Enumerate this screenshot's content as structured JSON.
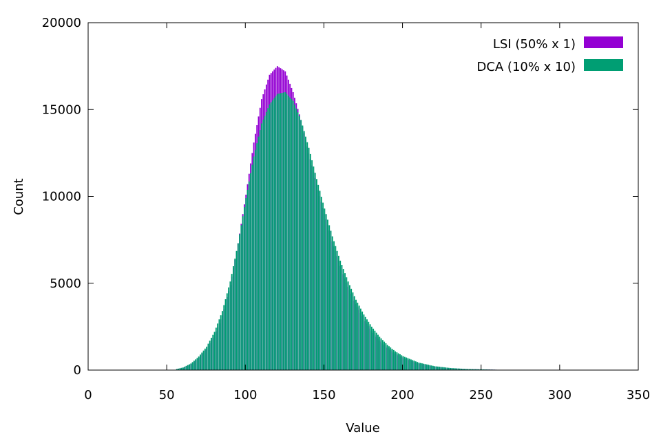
{
  "chart_data": {
    "type": "bar",
    "xlabel": "Value",
    "ylabel": "Count",
    "xlim": [
      0,
      350
    ],
    "ylim": [
      0,
      20000
    ],
    "xticks": [
      0,
      50,
      100,
      150,
      200,
      250,
      300,
      350
    ],
    "yticks": [
      0,
      5000,
      10000,
      15000,
      20000
    ],
    "grid": false,
    "legend_position": "top-right",
    "bin_width": 1,
    "series": [
      {
        "name": "LSI (50% x 1)",
        "color": "#9400d3",
        "points": [
          [
            55,
            40
          ],
          [
            60,
            140
          ],
          [
            65,
            350
          ],
          [
            70,
            720
          ],
          [
            75,
            1250
          ],
          [
            80,
            2000
          ],
          [
            85,
            3150
          ],
          [
            90,
            4900
          ],
          [
            95,
            7300
          ],
          [
            100,
            10100
          ],
          [
            105,
            13100
          ],
          [
            110,
            15600
          ],
          [
            115,
            17000
          ],
          [
            120,
            17500
          ],
          [
            125,
            17200
          ],
          [
            130,
            16000
          ],
          [
            135,
            14400
          ],
          [
            140,
            12500
          ],
          [
            145,
            10700
          ],
          [
            150,
            9000
          ],
          [
            155,
            7400
          ],
          [
            160,
            6000
          ],
          [
            165,
            4800
          ],
          [
            170,
            3800
          ],
          [
            175,
            2950
          ],
          [
            180,
            2250
          ],
          [
            185,
            1700
          ],
          [
            190,
            1280
          ],
          [
            195,
            950
          ],
          [
            200,
            700
          ],
          [
            210,
            380
          ],
          [
            220,
            200
          ],
          [
            230,
            110
          ],
          [
            240,
            60
          ],
          [
            260,
            20
          ],
          [
            300,
            5
          ],
          [
            348,
            0
          ]
        ]
      },
      {
        "name": "DCA (10% x 10)",
        "color": "#009e73",
        "points": [
          [
            55,
            40
          ],
          [
            60,
            150
          ],
          [
            65,
            380
          ],
          [
            70,
            780
          ],
          [
            75,
            1350
          ],
          [
            80,
            2200
          ],
          [
            85,
            3400
          ],
          [
            90,
            5100
          ],
          [
            95,
            7300
          ],
          [
            100,
            9900
          ],
          [
            105,
            12300
          ],
          [
            110,
            14200
          ],
          [
            115,
            15300
          ],
          [
            120,
            15900
          ],
          [
            125,
            16000
          ],
          [
            130,
            15500
          ],
          [
            135,
            14400
          ],
          [
            140,
            12800
          ],
          [
            145,
            11000
          ],
          [
            150,
            9300
          ],
          [
            155,
            7700
          ],
          [
            160,
            6300
          ],
          [
            165,
            5100
          ],
          [
            170,
            4050
          ],
          [
            175,
            3200
          ],
          [
            180,
            2500
          ],
          [
            185,
            1920
          ],
          [
            190,
            1450
          ],
          [
            195,
            1080
          ],
          [
            200,
            800
          ],
          [
            210,
            430
          ],
          [
            220,
            225
          ],
          [
            230,
            120
          ],
          [
            240,
            65
          ],
          [
            260,
            20
          ],
          [
            300,
            5
          ],
          [
            348,
            0
          ]
        ]
      }
    ]
  }
}
